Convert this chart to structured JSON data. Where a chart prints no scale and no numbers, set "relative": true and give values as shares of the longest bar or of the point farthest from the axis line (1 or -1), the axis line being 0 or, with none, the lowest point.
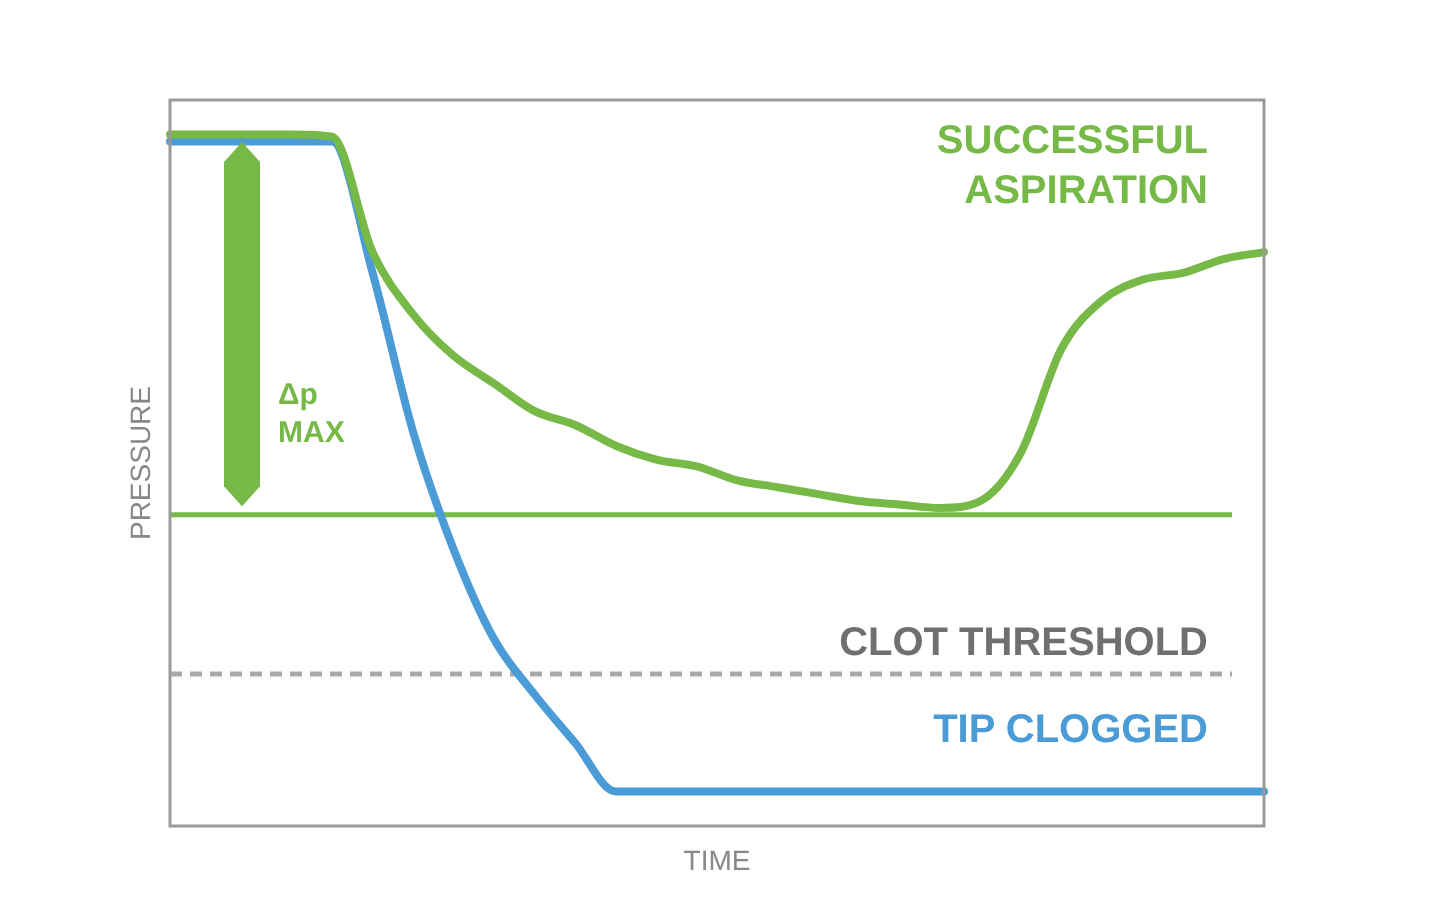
{
  "chart_data": {
    "type": "line",
    "relative": true,
    "xlabel": "TIME",
    "ylabel": "PRESSURE",
    "legend": false,
    "marker": "none",
    "line_style": "solid",
    "categories": [
      null,
      null,
      null,
      null,
      null,
      null,
      null,
      null,
      null,
      null,
      null,
      null,
      null,
      null,
      null,
      null,
      null,
      null,
      null,
      null,
      null,
      null,
      null,
      null,
      null,
      null,
      null,
      null
    ],
    "series": [
      {
        "name": "SUCCESSFUL ASPIRATION",
        "color": "#76b947",
        "values": [
          1.0,
          1.0,
          1.0,
          1.0,
          0.997,
          0.83,
          0.74,
          0.68,
          0.64,
          0.6,
          0.58,
          0.55,
          0.53,
          0.52,
          0.5,
          0.49,
          0.48,
          0.47,
          0.465,
          0.46,
          0.47,
          0.54,
          0.69,
          0.76,
          0.79,
          0.8,
          0.82,
          0.83
        ]
      },
      {
        "name": "TIP CLOGGED",
        "color": "#4a9bd6",
        "values": [
          0.99,
          0.99,
          0.99,
          0.99,
          0.99,
          0.8,
          0.57,
          0.4,
          0.27,
          0.19,
          0.12,
          0.05,
          0.05,
          0.05,
          0.05,
          0.05,
          0.05,
          0.05,
          0.05,
          0.05,
          0.05,
          0.05,
          0.05,
          0.05,
          0.05,
          0.05,
          0.05,
          0.05
        ]
      }
    ],
    "ref_lines": [
      {
        "axis": "y",
        "value": 0.45,
        "label": null,
        "color": "#76b947",
        "line_style": "solid"
      },
      {
        "axis": "y",
        "value": 0.22,
        "label": "CLOT THRESHOLD",
        "color": "#aaaaaa",
        "line_style": "dashed"
      }
    ],
    "annotations": [
      "Δp MAX"
    ]
  }
}
